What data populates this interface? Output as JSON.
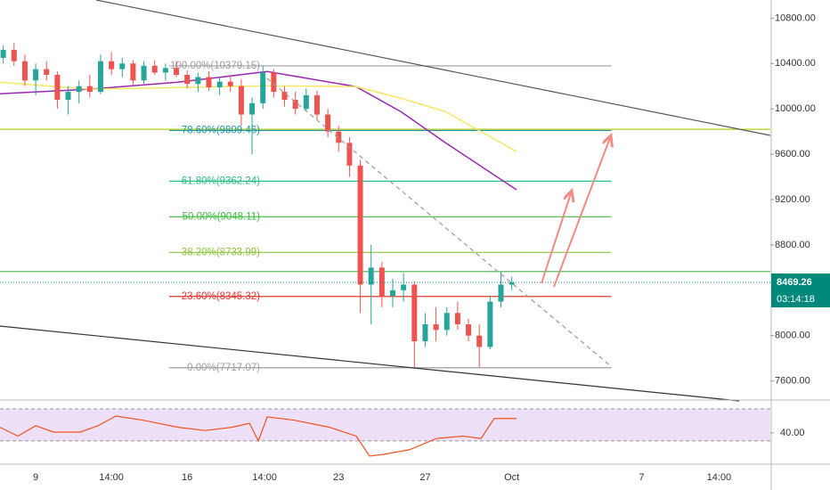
{
  "chart_data": {
    "type": "candlestick",
    "xlim": [
      -1.65,
      33.95
    ],
    "xticks": [
      {
        "value": 0,
        "label": "9"
      },
      {
        "value": 3.5,
        "label": "14:00"
      },
      {
        "value": 7,
        "label": "16"
      },
      {
        "value": 10.58,
        "label": "14:00"
      },
      {
        "value": 14,
        "label": "23"
      },
      {
        "value": 18,
        "label": "27"
      },
      {
        "value": 22,
        "label": "Oct"
      },
      {
        "value": 28,
        "label": "7"
      },
      {
        "value": 31.58,
        "label": "14:00"
      }
    ],
    "ylim": [
      7440,
      10960
    ],
    "yticks": [
      {
        "value": 10800,
        "label": "10800.00"
      },
      {
        "value": 10400,
        "label": "10400.00"
      },
      {
        "value": 10000,
        "label": "10000.00"
      },
      {
        "value": 9600,
        "label": "9600.00"
      },
      {
        "value": 9200,
        "label": "9200.00"
      },
      {
        "value": 8800,
        "label": "8800.00"
      },
      {
        "value": 8000,
        "label": "8000.00"
      },
      {
        "value": 7600,
        "label": "7600.00"
      }
    ],
    "up_color": "#26a69a",
    "down_color": "#ef5350",
    "candles": {
      "x": [
        -1.5,
        -1,
        -0.5,
        0,
        0.5,
        1,
        1.5,
        2,
        2.5,
        3,
        3.5,
        4,
        4.5,
        5,
        5.5,
        6,
        6.5,
        7,
        7.5,
        8,
        8.5,
        9,
        9.5,
        10,
        10.5,
        11,
        11.5,
        12,
        12.5,
        13,
        13.5,
        14,
        14.5,
        15,
        15.5,
        16,
        16.5,
        17,
        17.5,
        18,
        18.5,
        19,
        19.5,
        20,
        20.5,
        21,
        21.5,
        22
      ],
      "open": [
        10450,
        10520,
        10420,
        10250,
        10350,
        10300,
        10080,
        10150,
        10200,
        10150,
        10420,
        10350,
        10400,
        10250,
        10380,
        10320,
        10360,
        10300,
        10220,
        10280,
        10190,
        10240,
        10200,
        9950,
        10050,
        10320,
        10150,
        10080,
        10000,
        10120,
        9950,
        9800,
        9700,
        9500,
        8450,
        8600,
        8350,
        8400,
        8450,
        7950,
        8100,
        8050,
        8200,
        8100,
        8000,
        7900,
        8300,
        8450
      ],
      "high": [
        10560,
        10580,
        10480,
        10400,
        10420,
        10330,
        10200,
        10250,
        10300,
        10480,
        10500,
        10450,
        10430,
        10420,
        10430,
        10400,
        10420,
        10340,
        10320,
        10330,
        10280,
        10290,
        10260,
        10100,
        10380,
        10350,
        10200,
        10150,
        10180,
        10160,
        10000,
        9850,
        9750,
        9550,
        8800,
        8650,
        8500,
        8550,
        8480,
        8200,
        8250,
        8250,
        8300,
        8150,
        8100,
        8350,
        8560,
        8520
      ],
      "low": [
        10400,
        10380,
        10200,
        10120,
        10250,
        10000,
        9950,
        10050,
        10100,
        10130,
        10300,
        10280,
        10200,
        10220,
        10300,
        10250,
        10280,
        10180,
        10150,
        10160,
        10120,
        10150,
        9850,
        9600,
        10000,
        10100,
        10020,
        9950,
        9980,
        9900,
        9750,
        9620,
        9400,
        8200,
        8100,
        8250,
        8250,
        8300,
        7720,
        7900,
        7950,
        8000,
        8050,
        7950,
        7720,
        7880,
        8250,
        8400
      ],
      "close": [
        10520,
        10420,
        10250,
        10350,
        10300,
        10080,
        10150,
        10200,
        10150,
        10420,
        10350,
        10400,
        10250,
        10380,
        10320,
        10360,
        10300,
        10220,
        10280,
        10190,
        10240,
        10200,
        9950,
        10050,
        10320,
        10150,
        10080,
        10000,
        10120,
        9950,
        9800,
        9700,
        9500,
        8450,
        8600,
        8350,
        8400,
        8450,
        7950,
        8100,
        8050,
        8200,
        8100,
        8000,
        7900,
        8300,
        8450,
        8469.26
      ]
    },
    "moving_averages": [
      {
        "color": "#9c27b0",
        "x": [
          -1.65,
          2.47,
          6.58,
          10.7,
          14.8,
          16.87,
          18.93,
          22.22
        ],
        "values": [
          10133,
          10173,
          10235,
          10329,
          10196,
          9976,
          9702,
          9286
        ]
      },
      {
        "color": "#f5e663",
        "x": [
          -1.65,
          2.47,
          6.58,
          10.7,
          14.8,
          16.87,
          18.93,
          22.22
        ],
        "values": [
          10235,
          10173,
          10188,
          10204,
          10196,
          10094,
          9976,
          9624
        ]
      }
    ],
    "fib": {
      "x_range": [
        6.17,
        26.6
      ],
      "levels": [
        {
          "label": "100.00%(10379.15)",
          "value": 10379.15,
          "color": "#9e9e9e"
        },
        {
          "label": "78.60%(9809.46)",
          "value": 9809.46,
          "color": "#2196a8"
        },
        {
          "label": "61.80%(9362.24)",
          "value": 9362.24,
          "color": "#26c281"
        },
        {
          "label": "50.00%(9048.11)",
          "value": 9048.11,
          "color": "#3dbb3d"
        },
        {
          "label": "38.20%(8733.99)",
          "value": 8733.99,
          "color": "#8dc63f"
        },
        {
          "label": "23.60%(8345.32)",
          "value": 8345.32,
          "color": "#e53935"
        },
        {
          "label": "0.00%(7717.07)",
          "value": 7717.07,
          "color": "#9e9e9e"
        }
      ]
    },
    "hlines": [
      {
        "value": 9820,
        "color": "#b5cc18"
      },
      {
        "value": 8565,
        "color": "#4caf50"
      }
    ],
    "last_price": {
      "value": 8469.26,
      "label": "8469.26",
      "countdown": "03:14:18",
      "color": "#00897b"
    },
    "rsi": {
      "color": "#f4511e",
      "ylim": [
        2,
        80
      ],
      "yticks": [
        {
          "value": 40,
          "label": "40.00"
        }
      ],
      "bands": [
        30,
        70
      ],
      "x": [
        -1.65,
        -0.82,
        0,
        0.82,
        2.06,
        2.88,
        3.7,
        4.94,
        6.58,
        7.82,
        9.05,
        9.88,
        10.29,
        10.7,
        11.93,
        13.58,
        14.81,
        15.43,
        16.05,
        17.28,
        18.52,
        19.75,
        20.58,
        21.19,
        22.22
      ],
      "values": [
        47,
        36,
        49,
        41,
        41,
        49,
        61,
        56,
        47,
        43,
        47,
        52,
        30,
        60,
        56,
        47,
        36,
        11,
        13,
        19,
        33,
        36,
        33,
        58,
        58
      ]
    }
  }
}
